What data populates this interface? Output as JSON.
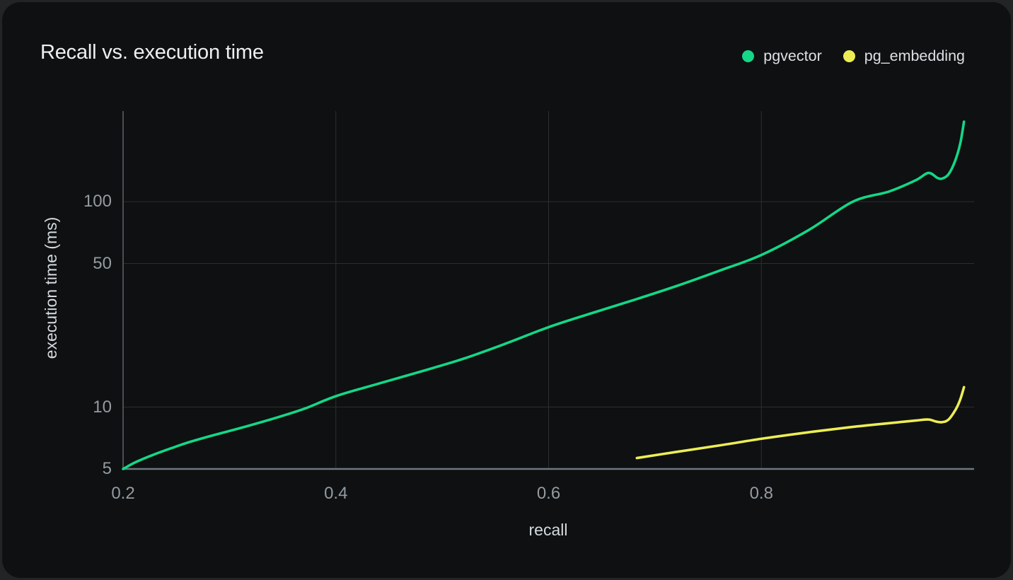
{
  "chart_data": {
    "type": "line",
    "title": "Recall vs. execution time",
    "xlabel": "recall",
    "ylabel": "execution time (ms)",
    "grid": true,
    "legend_position": "top-right",
    "background": "#0e1011",
    "x_axis": {
      "min": 0.2,
      "max": 1.0,
      "ticks": [
        {
          "label": "0.2",
          "value": 0.2
        },
        {
          "label": "0.4",
          "value": 0.4
        },
        {
          "label": "0.6",
          "value": 0.6
        },
        {
          "label": "0.8",
          "value": 0.8
        }
      ]
    },
    "y_axis": {
      "scale": "log",
      "min": 5,
      "max": 276,
      "ticks": [
        {
          "label": "5",
          "value": 5
        },
        {
          "label": "10",
          "value": 10
        },
        {
          "label": "50",
          "value": 50
        },
        {
          "label": "100",
          "value": 100
        }
      ]
    },
    "series": [
      {
        "name": "pgvector",
        "color": "#14d787",
        "points": [
          [
            0.2,
            5.0
          ],
          [
            0.212,
            5.4
          ],
          [
            0.228,
            5.85
          ],
          [
            0.245,
            6.3
          ],
          [
            0.262,
            6.75
          ],
          [
            0.285,
            7.3
          ],
          [
            0.31,
            7.9
          ],
          [
            0.34,
            8.75
          ],
          [
            0.37,
            9.8
          ],
          [
            0.4,
            11.3
          ],
          [
            0.44,
            13.0
          ],
          [
            0.48,
            14.9
          ],
          [
            0.52,
            17.2
          ],
          [
            0.56,
            20.4
          ],
          [
            0.6,
            24.5
          ],
          [
            0.64,
            28.6
          ],
          [
            0.68,
            33.2
          ],
          [
            0.72,
            38.8
          ],
          [
            0.76,
            46.0
          ],
          [
            0.8,
            55.0
          ],
          [
            0.845,
            73.0
          ],
          [
            0.886,
            100.0
          ],
          [
            0.92,
            112.0
          ],
          [
            0.945,
            127.0
          ],
          [
            0.957,
            138.0
          ],
          [
            0.9655,
            130.5
          ],
          [
            0.97,
            129.5
          ],
          [
            0.976,
            136.0
          ],
          [
            0.982,
            157.0
          ],
          [
            0.987,
            192.0
          ],
          [
            0.9905,
            245.0
          ]
        ]
      },
      {
        "name": "pg_embedding",
        "color": "#eced55",
        "points": [
          [
            0.683,
            5.65
          ],
          [
            0.72,
            6.05
          ],
          [
            0.76,
            6.5
          ],
          [
            0.803,
            7.05
          ],
          [
            0.845,
            7.55
          ],
          [
            0.885,
            8.0
          ],
          [
            0.92,
            8.35
          ],
          [
            0.945,
            8.6
          ],
          [
            0.957,
            8.7
          ],
          [
            0.9645,
            8.5
          ],
          [
            0.97,
            8.45
          ],
          [
            0.976,
            8.7
          ],
          [
            0.983,
            9.8
          ],
          [
            0.987,
            10.9
          ],
          [
            0.9905,
            12.5
          ]
        ]
      }
    ],
    "colors": {
      "grid": "#2b2e32",
      "y_axis_line": "#5a5f66",
      "x_axis_line": "#70767f",
      "tick_text": "#949ba1",
      "axis_title_text": "#d6dade",
      "title_text": "#edeff1"
    }
  }
}
